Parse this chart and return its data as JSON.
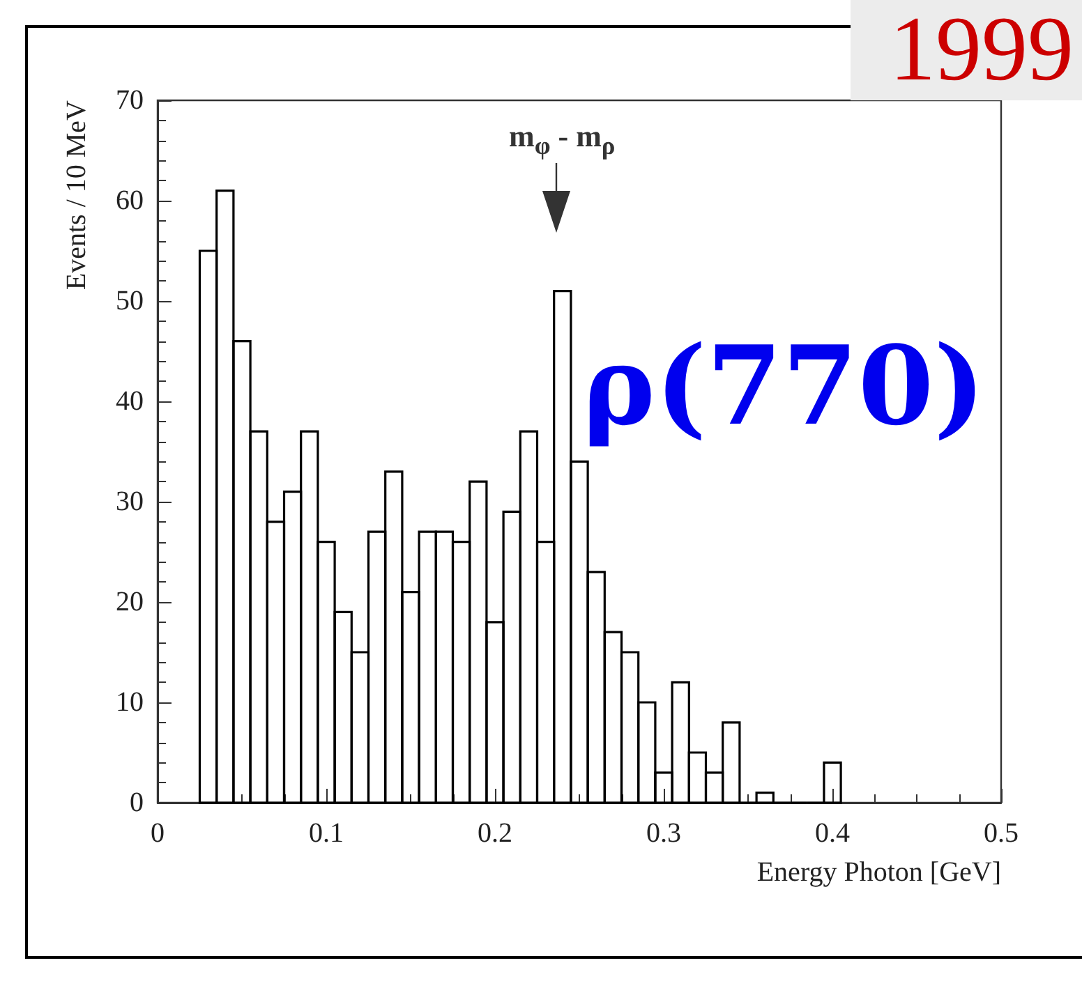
{
  "chart_data": {
    "type": "histogram",
    "xlabel": "Energy Photon [GeV]",
    "ylabel": "Events / 10 MeV",
    "bins": [
      0.025,
      0.035,
      0.045,
      0.055,
      0.065,
      0.075,
      0.085,
      0.095,
      0.105,
      0.115,
      0.125,
      0.135,
      0.145,
      0.155,
      0.165,
      0.175,
      0.185,
      0.195,
      0.205,
      0.215,
      0.225,
      0.235,
      0.245,
      0.255,
      0.265,
      0.275,
      0.285,
      0.295,
      0.305,
      0.315,
      0.325,
      0.335,
      0.345,
      0.355,
      0.365,
      0.375,
      0.385,
      0.395,
      0.405
    ],
    "values": [
      55,
      61,
      46,
      37,
      28,
      31,
      37,
      26,
      19,
      15,
      27,
      33,
      21,
      27,
      27,
      26,
      32,
      18,
      29,
      37,
      26,
      51,
      34,
      23,
      17,
      15,
      10,
      3,
      12,
      5,
      3,
      8,
      0,
      1,
      0,
      0,
      0,
      4
    ],
    "color": "#000000",
    "xlim": [
      0,
      0.5
    ],
    "xticks": [
      0,
      0.1,
      0.2,
      0.3,
      0.4,
      0.5
    ],
    "ylim": [
      0,
      70
    ],
    "yticks": [
      0,
      10,
      20,
      30,
      40,
      50,
      60,
      70
    ],
    "annotations": [
      "m$_{φ}$ - m$_{ρ}$",
      "ρ(770)",
      "1999"
    ]
  }
}
